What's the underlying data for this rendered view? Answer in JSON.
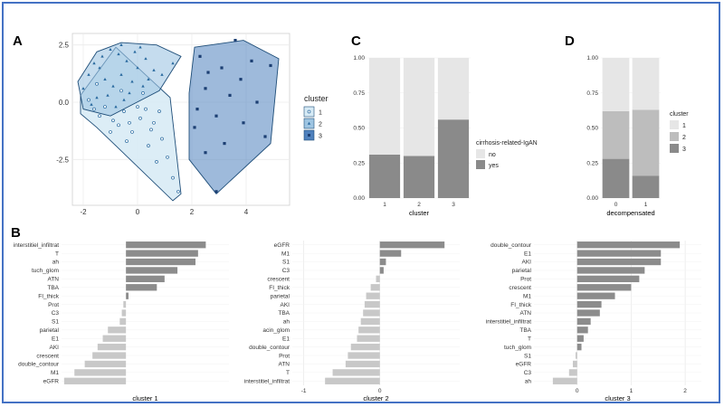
{
  "panel_labels": {
    "a": "A",
    "b": "B",
    "c": "C",
    "d": "D"
  },
  "colors": {
    "cluster1_fill": "#d6eaf5",
    "cluster2_fill": "#9ec5e2",
    "cluster3_fill": "#4f81bd",
    "point": "#2a6a9f",
    "point3": "#1c3f73",
    "bar_pos": "#8c8c8c",
    "bar_neg": "#c8c8c8",
    "stack_light": "#e6e6e6",
    "stack_mid": "#bdbdbd",
    "stack_dark": "#8a8a8a"
  },
  "chart_data": [
    {
      "id": "A",
      "type": "scatter",
      "xlim": [
        -2.4,
        5.6
      ],
      "ylim": [
        -4.5,
        3.0
      ],
      "x_ticks": [
        -2,
        0,
        2,
        4
      ],
      "y_ticks": [
        2.5,
        0.0,
        -2.5
      ],
      "y_tick_labels": [
        "2.5",
        "0.0",
        "-2.5"
      ],
      "x_tick_labels": [
        "-2",
        "0",
        "2",
        "4"
      ],
      "legend_title": "cluster",
      "legend_labels": [
        "1",
        "2",
        "3"
      ],
      "legend_placement": "right",
      "grid": true,
      "hulls": [
        {
          "cluster": "1",
          "points": [
            [
              -2.1,
              0.3
            ],
            [
              -0.8,
              2.4
            ],
            [
              0.2,
              1.3
            ],
            [
              1.2,
              0.2
            ],
            [
              1.6,
              -4.0
            ],
            [
              1.3,
              -4.3
            ],
            [
              -1.5,
              -1.1
            ],
            [
              -2.1,
              -0.5
            ]
          ]
        },
        {
          "cluster": "2",
          "points": [
            [
              -2.2,
              0.9
            ],
            [
              -1.5,
              2.2
            ],
            [
              -0.6,
              2.6
            ],
            [
              0.7,
              2.5
            ],
            [
              1.6,
              2.0
            ],
            [
              0.8,
              0.5
            ],
            [
              -1.0,
              -0.6
            ],
            [
              -2.0,
              -0.3
            ]
          ]
        },
        {
          "cluster": "3",
          "points": [
            [
              2.1,
              2.4
            ],
            [
              3.9,
              2.7
            ],
            [
              5.2,
              1.9
            ],
            [
              4.9,
              -1.8
            ],
            [
              2.9,
              -4.0
            ],
            [
              1.9,
              -2.5
            ],
            [
              1.9,
              0.4
            ]
          ]
        }
      ],
      "points": [
        {
          "cluster": "1",
          "xy": [
            [
              -1.8,
              0.1
            ],
            [
              -1.6,
              -0.3
            ],
            [
              -1.4,
              -0.6
            ],
            [
              -1.2,
              -0.2
            ],
            [
              -0.9,
              -0.8
            ],
            [
              -0.7,
              -1.0
            ],
            [
              -0.5,
              -0.4
            ],
            [
              -0.2,
              -1.3
            ],
            [
              0.1,
              -0.7
            ],
            [
              0.3,
              -0.3
            ],
            [
              0.6,
              -0.9
            ],
            [
              0.9,
              -1.6
            ],
            [
              1.1,
              -2.4
            ],
            [
              1.3,
              -3.3
            ],
            [
              1.5,
              -3.9
            ],
            [
              -0.4,
              -1.7
            ],
            [
              0.4,
              -1.9
            ],
            [
              0.7,
              -2.6
            ],
            [
              -1.0,
              -1.3
            ],
            [
              0.0,
              -0.2
            ],
            [
              -0.6,
              0.5
            ],
            [
              0.2,
              0.4
            ],
            [
              -1.5,
              0.8
            ],
            [
              0.5,
              -1.2
            ],
            [
              -0.3,
              -0.9
            ],
            [
              0.8,
              -0.4
            ]
          ]
        },
        {
          "cluster": "2",
          "xy": [
            [
              -2.0,
              0.6
            ],
            [
              -1.8,
              1.2
            ],
            [
              -1.6,
              1.7
            ],
            [
              -1.3,
              2.0
            ],
            [
              -1.0,
              2.3
            ],
            [
              -0.7,
              2.1
            ],
            [
              -0.4,
              1.8
            ],
            [
              -0.1,
              2.2
            ],
            [
              0.3,
              1.9
            ],
            [
              0.6,
              1.4
            ],
            [
              0.9,
              1.2
            ],
            [
              -1.2,
              1.0
            ],
            [
              -0.9,
              0.7
            ],
            [
              -0.6,
              1.2
            ],
            [
              -0.2,
              0.9
            ],
            [
              0.2,
              0.7
            ],
            [
              -1.5,
              0.2
            ],
            [
              -1.1,
              0.3
            ],
            [
              -0.5,
              0.1
            ],
            [
              0.0,
              1.5
            ],
            [
              -1.7,
              -0.1
            ],
            [
              -0.8,
              -0.2
            ],
            [
              0.4,
              1.0
            ],
            [
              -1.4,
              1.5
            ],
            [
              -0.3,
              0.4
            ],
            [
              0.1,
              2.4
            ],
            [
              -0.6,
              2.5
            ],
            [
              1.3,
              1.7
            ]
          ]
        },
        {
          "cluster": "3",
          "xy": [
            [
              3.6,
              2.7
            ],
            [
              2.3,
              2.0
            ],
            [
              2.6,
              1.3
            ],
            [
              3.1,
              1.5
            ],
            [
              4.2,
              1.8
            ],
            [
              4.9,
              1.6
            ],
            [
              3.8,
              1.0
            ],
            [
              2.5,
              0.6
            ],
            [
              3.4,
              0.3
            ],
            [
              4.4,
              0.0
            ],
            [
              2.2,
              -0.3
            ],
            [
              2.9,
              -0.6
            ],
            [
              3.9,
              -0.9
            ],
            [
              4.7,
              -1.5
            ],
            [
              3.2,
              -1.8
            ],
            [
              2.5,
              -2.2
            ],
            [
              2.9,
              -3.9
            ],
            [
              2.1,
              -1.1
            ]
          ]
        }
      ]
    },
    {
      "id": "C",
      "type": "bar",
      "stacked": true,
      "categories": [
        "1",
        "2",
        "3"
      ],
      "xlabel": "cluster",
      "ylim": [
        0,
        1
      ],
      "y_tick_labels": [
        "0.00",
        "0.25",
        "0.50",
        "0.75",
        "1.00"
      ],
      "legend_title": "cirrhosis-related-IgAN",
      "series": [
        {
          "name": "no",
          "values": [
            0.69,
            0.7,
            0.44
          ]
        },
        {
          "name": "yes",
          "values": [
            0.31,
            0.3,
            0.56
          ]
        }
      ]
    },
    {
      "id": "D",
      "type": "bar",
      "stacked": true,
      "categories": [
        "0",
        "1"
      ],
      "xlabel": "decompensated",
      "ylim": [
        0,
        1
      ],
      "y_tick_labels": [
        "0.00",
        "0.25",
        "0.50",
        "0.75",
        "1.00"
      ],
      "legend_title": "cluster",
      "series": [
        {
          "name": "1",
          "values": [
            0.38,
            0.37
          ]
        },
        {
          "name": "2",
          "values": [
            0.34,
            0.47
          ]
        },
        {
          "name": "3",
          "values": [
            0.28,
            0.16
          ]
        }
      ]
    },
    {
      "id": "B1",
      "type": "bar",
      "orientation": "horizontal",
      "xlabel": "cluster 1",
      "xlim": [
        -1.25,
        2.0
      ],
      "x_ticks": [],
      "categories": [
        "interstitiel_infiltrat",
        "T",
        "ah",
        "tuch_glom",
        "ATN",
        "TBA",
        "FI_thick",
        "Prot",
        "C3",
        "S1",
        "parietal",
        "E1",
        "AKI",
        "crescent",
        "double_contour",
        "M1",
        "eGFR"
      ],
      "values": [
        1.55,
        1.4,
        1.35,
        1.0,
        0.75,
        0.6,
        0.05,
        -0.05,
        -0.08,
        -0.12,
        -0.35,
        -0.45,
        -0.55,
        -0.65,
        -0.8,
        -1.0,
        -1.2
      ]
    },
    {
      "id": "B2",
      "type": "bar",
      "orientation": "horizontal",
      "xlabel": "cluster 2",
      "xlim": [
        -1.15,
        1.05
      ],
      "x_ticks": [
        -1,
        0
      ],
      "x_tick_labels": [
        "-1",
        "0"
      ],
      "categories": [
        "eGFR",
        "M1",
        "S1",
        "C3",
        "crescent",
        "FI_thick",
        "parietal",
        "AKI",
        "TBA",
        "ah",
        "acin_glom",
        "E1",
        "double_contour",
        "Prot",
        "ATN",
        "T",
        "interstitiel_infiltrat"
      ],
      "values": [
        0.85,
        0.28,
        0.08,
        0.05,
        -0.05,
        -0.12,
        -0.18,
        -0.2,
        -0.22,
        -0.25,
        -0.28,
        -0.3,
        -0.38,
        -0.42,
        -0.45,
        -0.62,
        -0.72
      ]
    },
    {
      "id": "B3",
      "type": "bar",
      "orientation": "horizontal",
      "xlabel": "cluster 3",
      "xlim": [
        -0.8,
        2.3
      ],
      "x_ticks": [
        0,
        1,
        2
      ],
      "x_tick_labels": [
        "0",
        "1",
        "2"
      ],
      "categories": [
        "double_contour",
        "E1",
        "AKI",
        "parietal",
        "Prot",
        "crescent",
        "M1",
        "FI_thick",
        "ATN",
        "interstitiel_infiltrat",
        "TBA",
        "T",
        "tuch_glom",
        "S1",
        "eGFR",
        "C3",
        "ah"
      ],
      "values": [
        1.9,
        1.55,
        1.55,
        1.25,
        1.15,
        1.0,
        0.7,
        0.45,
        0.42,
        0.25,
        0.2,
        0.12,
        0.08,
        -0.03,
        -0.08,
        -0.15,
        -0.45
      ]
    }
  ]
}
